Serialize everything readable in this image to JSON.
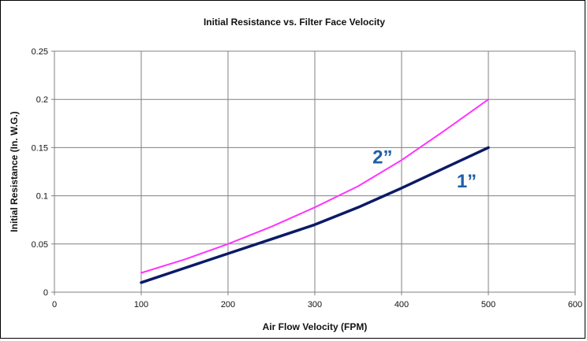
{
  "chart_data": {
    "type": "line",
    "title": "Initial Resistance vs. Filter Face Velocity",
    "xlabel": "Air Flow Velocity (FPM)",
    "ylabel": "Initial Resistance (In. W.G.)",
    "xlim": [
      0,
      600
    ],
    "ylim": [
      0,
      0.25
    ],
    "xticks": [
      0,
      100,
      200,
      300,
      400,
      500,
      600
    ],
    "yticks": [
      0,
      0.05,
      0.1,
      0.15,
      0.2,
      0.25
    ],
    "xtick_labels": [
      "0",
      "100",
      "200",
      "300",
      "400",
      "500",
      "600"
    ],
    "ytick_labels": [
      "0",
      "0.05",
      "0.1",
      "0.15",
      "0.2",
      "0.25"
    ],
    "grid": true,
    "legend": "none",
    "series": [
      {
        "name": "1”",
        "color": "#0b1a66",
        "x": [
          100,
          150,
          200,
          250,
          300,
          350,
          400,
          450,
          500
        ],
        "y": [
          0.01,
          0.025,
          0.04,
          0.055,
          0.07,
          0.088,
          0.108,
          0.129,
          0.15
        ]
      },
      {
        "name": "2”",
        "color": "#ff33ff",
        "x": [
          100,
          150,
          200,
          250,
          300,
          350,
          400,
          450,
          500
        ],
        "y": [
          0.02,
          0.034,
          0.05,
          0.068,
          0.088,
          0.11,
          0.137,
          0.168,
          0.2
        ]
      }
    ],
    "series_labels": [
      {
        "text": "2”",
        "series": 1,
        "at_x": 378,
        "at_y": 0.14
      },
      {
        "text": "1”",
        "series": 0,
        "at_x": 475,
        "at_y": 0.115
      }
    ]
  }
}
